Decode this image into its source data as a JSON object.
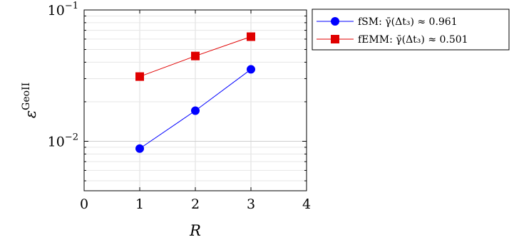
{
  "chart_data": {
    "type": "line",
    "title": "",
    "xlabel": "R",
    "ylabel": "ε^GeoII",
    "yscale": "log",
    "xlim": [
      0,
      4
    ],
    "ylim": [
      0.0042,
      0.1
    ],
    "xticks": [
      "0",
      "1",
      "2",
      "3",
      "4"
    ],
    "yticks": [
      {
        "value": 0.01,
        "base": "10",
        "exp": "−2"
      },
      {
        "value": 0.1,
        "base": "10",
        "exp": "−1"
      }
    ],
    "grid": true,
    "legend_position": "outside-right",
    "series": [
      {
        "name": "fSM: γ̄(Δt₃) ≈ 0.961",
        "color": "#0000ff",
        "marker": "circle",
        "x": [
          1,
          2,
          3
        ],
        "y": [
          0.0088,
          0.0171,
          0.0353
        ]
      },
      {
        "name": "fEMM: γ̄(Δt₃) ≈ 0.501",
        "color": "#e00000",
        "marker": "square",
        "x": [
          1,
          2,
          3
        ],
        "y": [
          0.0311,
          0.0446,
          0.0626
        ]
      }
    ]
  }
}
